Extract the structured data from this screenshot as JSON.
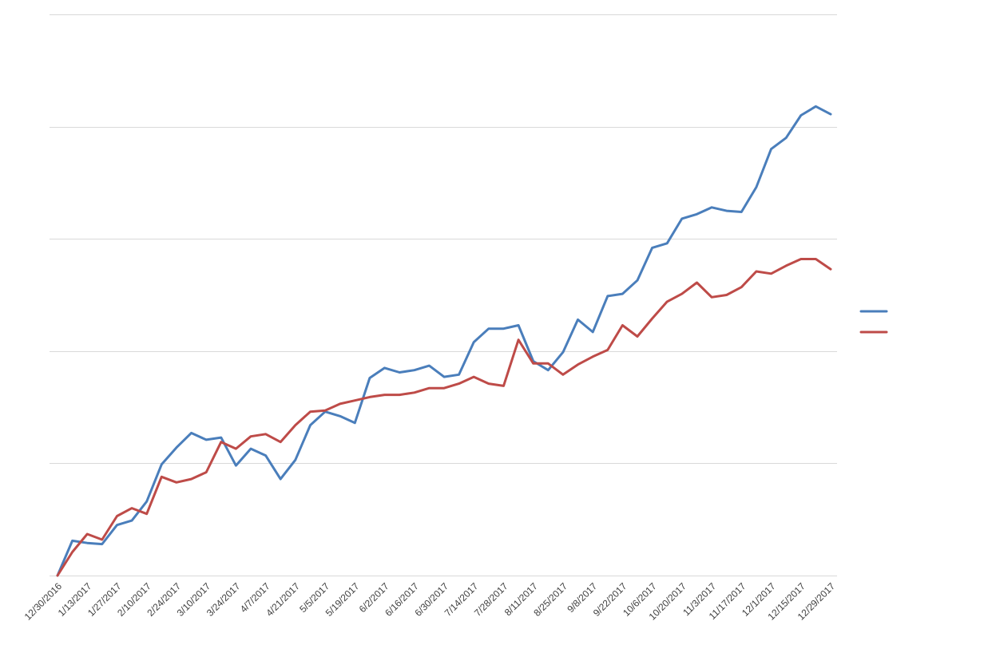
{
  "chart_data": {
    "type": "line",
    "title": "",
    "xlabel": "",
    "ylabel": "",
    "x_tick_labels": [
      "12/30/2016",
      "1/13/2017",
      "1/27/2017",
      "2/10/2017",
      "2/24/2017",
      "3/10/2017",
      "3/24/2017",
      "4/7/2017",
      "4/21/2017",
      "5/5/2017",
      "5/19/2017",
      "6/2/2017",
      "6/16/2017",
      "6/30/2017",
      "7/14/2017",
      "7/28/2017",
      "8/11/2017",
      "8/25/2017",
      "9/8/2017",
      "9/22/2017",
      "10/6/2017",
      "10/20/2017",
      "11/3/2017",
      "11/17/2017",
      "12/1/2017",
      "12/15/2017",
      "12/29/2017"
    ],
    "x_step_days": 7,
    "ylim": [
      0,
      5
    ],
    "grid": true,
    "legend": "right",
    "series": [
      {
        "color": "#4a7ebb",
        "values": [
          0.0,
          0.31,
          0.29,
          0.28,
          0.45,
          0.49,
          0.66,
          0.99,
          1.14,
          1.27,
          1.21,
          1.23,
          0.98,
          1.13,
          1.07,
          0.86,
          1.03,
          1.34,
          1.46,
          1.42,
          1.36,
          1.76,
          1.85,
          1.81,
          1.83,
          1.87,
          1.77,
          1.79,
          2.08,
          2.2,
          2.2,
          2.23,
          1.91,
          1.83,
          1.99,
          2.28,
          2.17,
          2.49,
          2.51,
          2.63,
          2.92,
          2.96,
          3.18,
          3.22,
          3.28,
          3.25,
          3.24,
          3.46,
          3.8,
          3.9,
          4.1,
          4.18,
          4.11
        ]
      },
      {
        "color": "#be4b48",
        "values": [
          0.0,
          0.21,
          0.37,
          0.32,
          0.53,
          0.6,
          0.55,
          0.88,
          0.83,
          0.86,
          0.92,
          1.19,
          1.13,
          1.24,
          1.26,
          1.19,
          1.34,
          1.46,
          1.47,
          1.53,
          1.56,
          1.59,
          1.61,
          1.61,
          1.63,
          1.67,
          1.67,
          1.71,
          1.77,
          1.71,
          1.69,
          2.1,
          1.89,
          1.89,
          1.79,
          1.88,
          1.95,
          2.01,
          2.23,
          2.13,
          2.29,
          2.44,
          2.51,
          2.61,
          2.48,
          2.5,
          2.57,
          2.71,
          2.69,
          2.76,
          2.82,
          2.82,
          2.73
        ]
      }
    ]
  }
}
